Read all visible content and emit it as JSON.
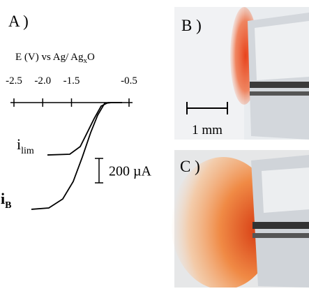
{
  "chart_data": {
    "type": "line",
    "panel_label": "A )",
    "xlabel": [
      "E (V) vs Ag/ Ag",
      "x",
      "O"
    ],
    "xlim": [
      -2.5,
      -0.5
    ],
    "xticks": [
      -2.5,
      {
        "value": -2.0,
        "label": "-2.0"
      },
      -1.5,
      -0.5
    ],
    "ylim": [
      -900,
      0
    ],
    "series": [
      {
        "name": "i",
        "name_subscript": "lim",
        "color": "#000000",
        "x": [
          -1.918,
          -1.53,
          -1.348,
          -1.227,
          -1.106,
          -0.985,
          -0.864,
          -0.621
        ],
        "values": [
          -429,
          -423,
          -360,
          -246,
          -131,
          -29,
          0,
          0
        ]
      },
      {
        "name": "i",
        "name_subscript": "B",
        "color": "#000000",
        "x": [
          -2.197,
          -1.894,
          -1.652,
          -1.47,
          -1.312,
          -1.167,
          -1.045,
          -0.924,
          -0.803,
          -0.621
        ],
        "values": [
          -874,
          -863,
          -789,
          -646,
          -446,
          -246,
          -103,
          -6,
          0,
          0
        ]
      }
    ],
    "scale_bar": {
      "value": 200,
      "label": "200 µA"
    }
  },
  "panels": [
    {
      "label": "B )",
      "scale_label": "1 mm"
    },
    {
      "label": "C )"
    }
  ]
}
